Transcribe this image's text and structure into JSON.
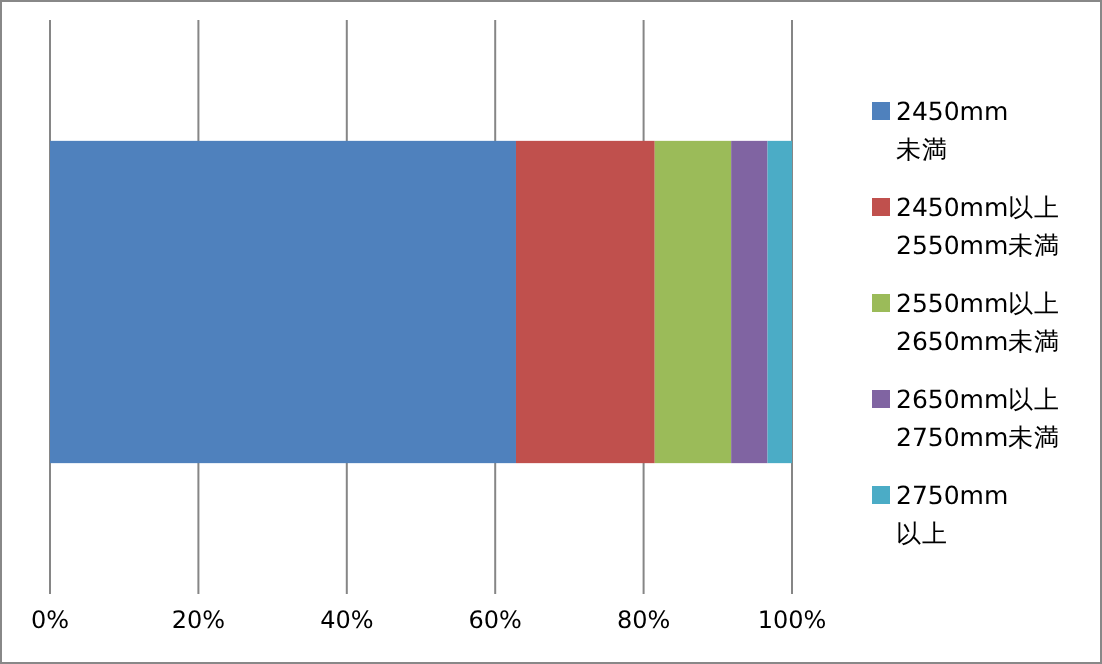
{
  "chart_data": {
    "type": "bar",
    "orientation": "horizontal",
    "stacked": true,
    "categories": [
      null
    ],
    "series": [
      {
        "name": "2450mm\n未満",
        "color": "#4f81bd",
        "values": [
          62.8
        ]
      },
      {
        "name": "2450mm以上\n2550mm未満",
        "color": "#c0504d",
        "values": [
          18.7
        ]
      },
      {
        "name": "2550mm以上\n2650mm未満",
        "color": "#9bbb59",
        "values": [
          10.3
        ]
      },
      {
        "name": "2650mm以上\n2750mm未満",
        "color": "#8064a2",
        "values": [
          4.9
        ]
      },
      {
        "name": "2750mm\n以上",
        "color": "#4bacc6",
        "values": [
          3.3
        ]
      }
    ],
    "xlim": [
      0,
      100
    ],
    "xticks": [
      {
        "value": 0,
        "label": "0%"
      },
      {
        "value": 20,
        "label": "20%"
      },
      {
        "value": 40,
        "label": "40%"
      },
      {
        "value": 60,
        "label": "60%"
      },
      {
        "value": 80,
        "label": "80%"
      },
      {
        "value": 100,
        "label": "100%"
      }
    ],
    "grid": "x",
    "legend": "right"
  }
}
